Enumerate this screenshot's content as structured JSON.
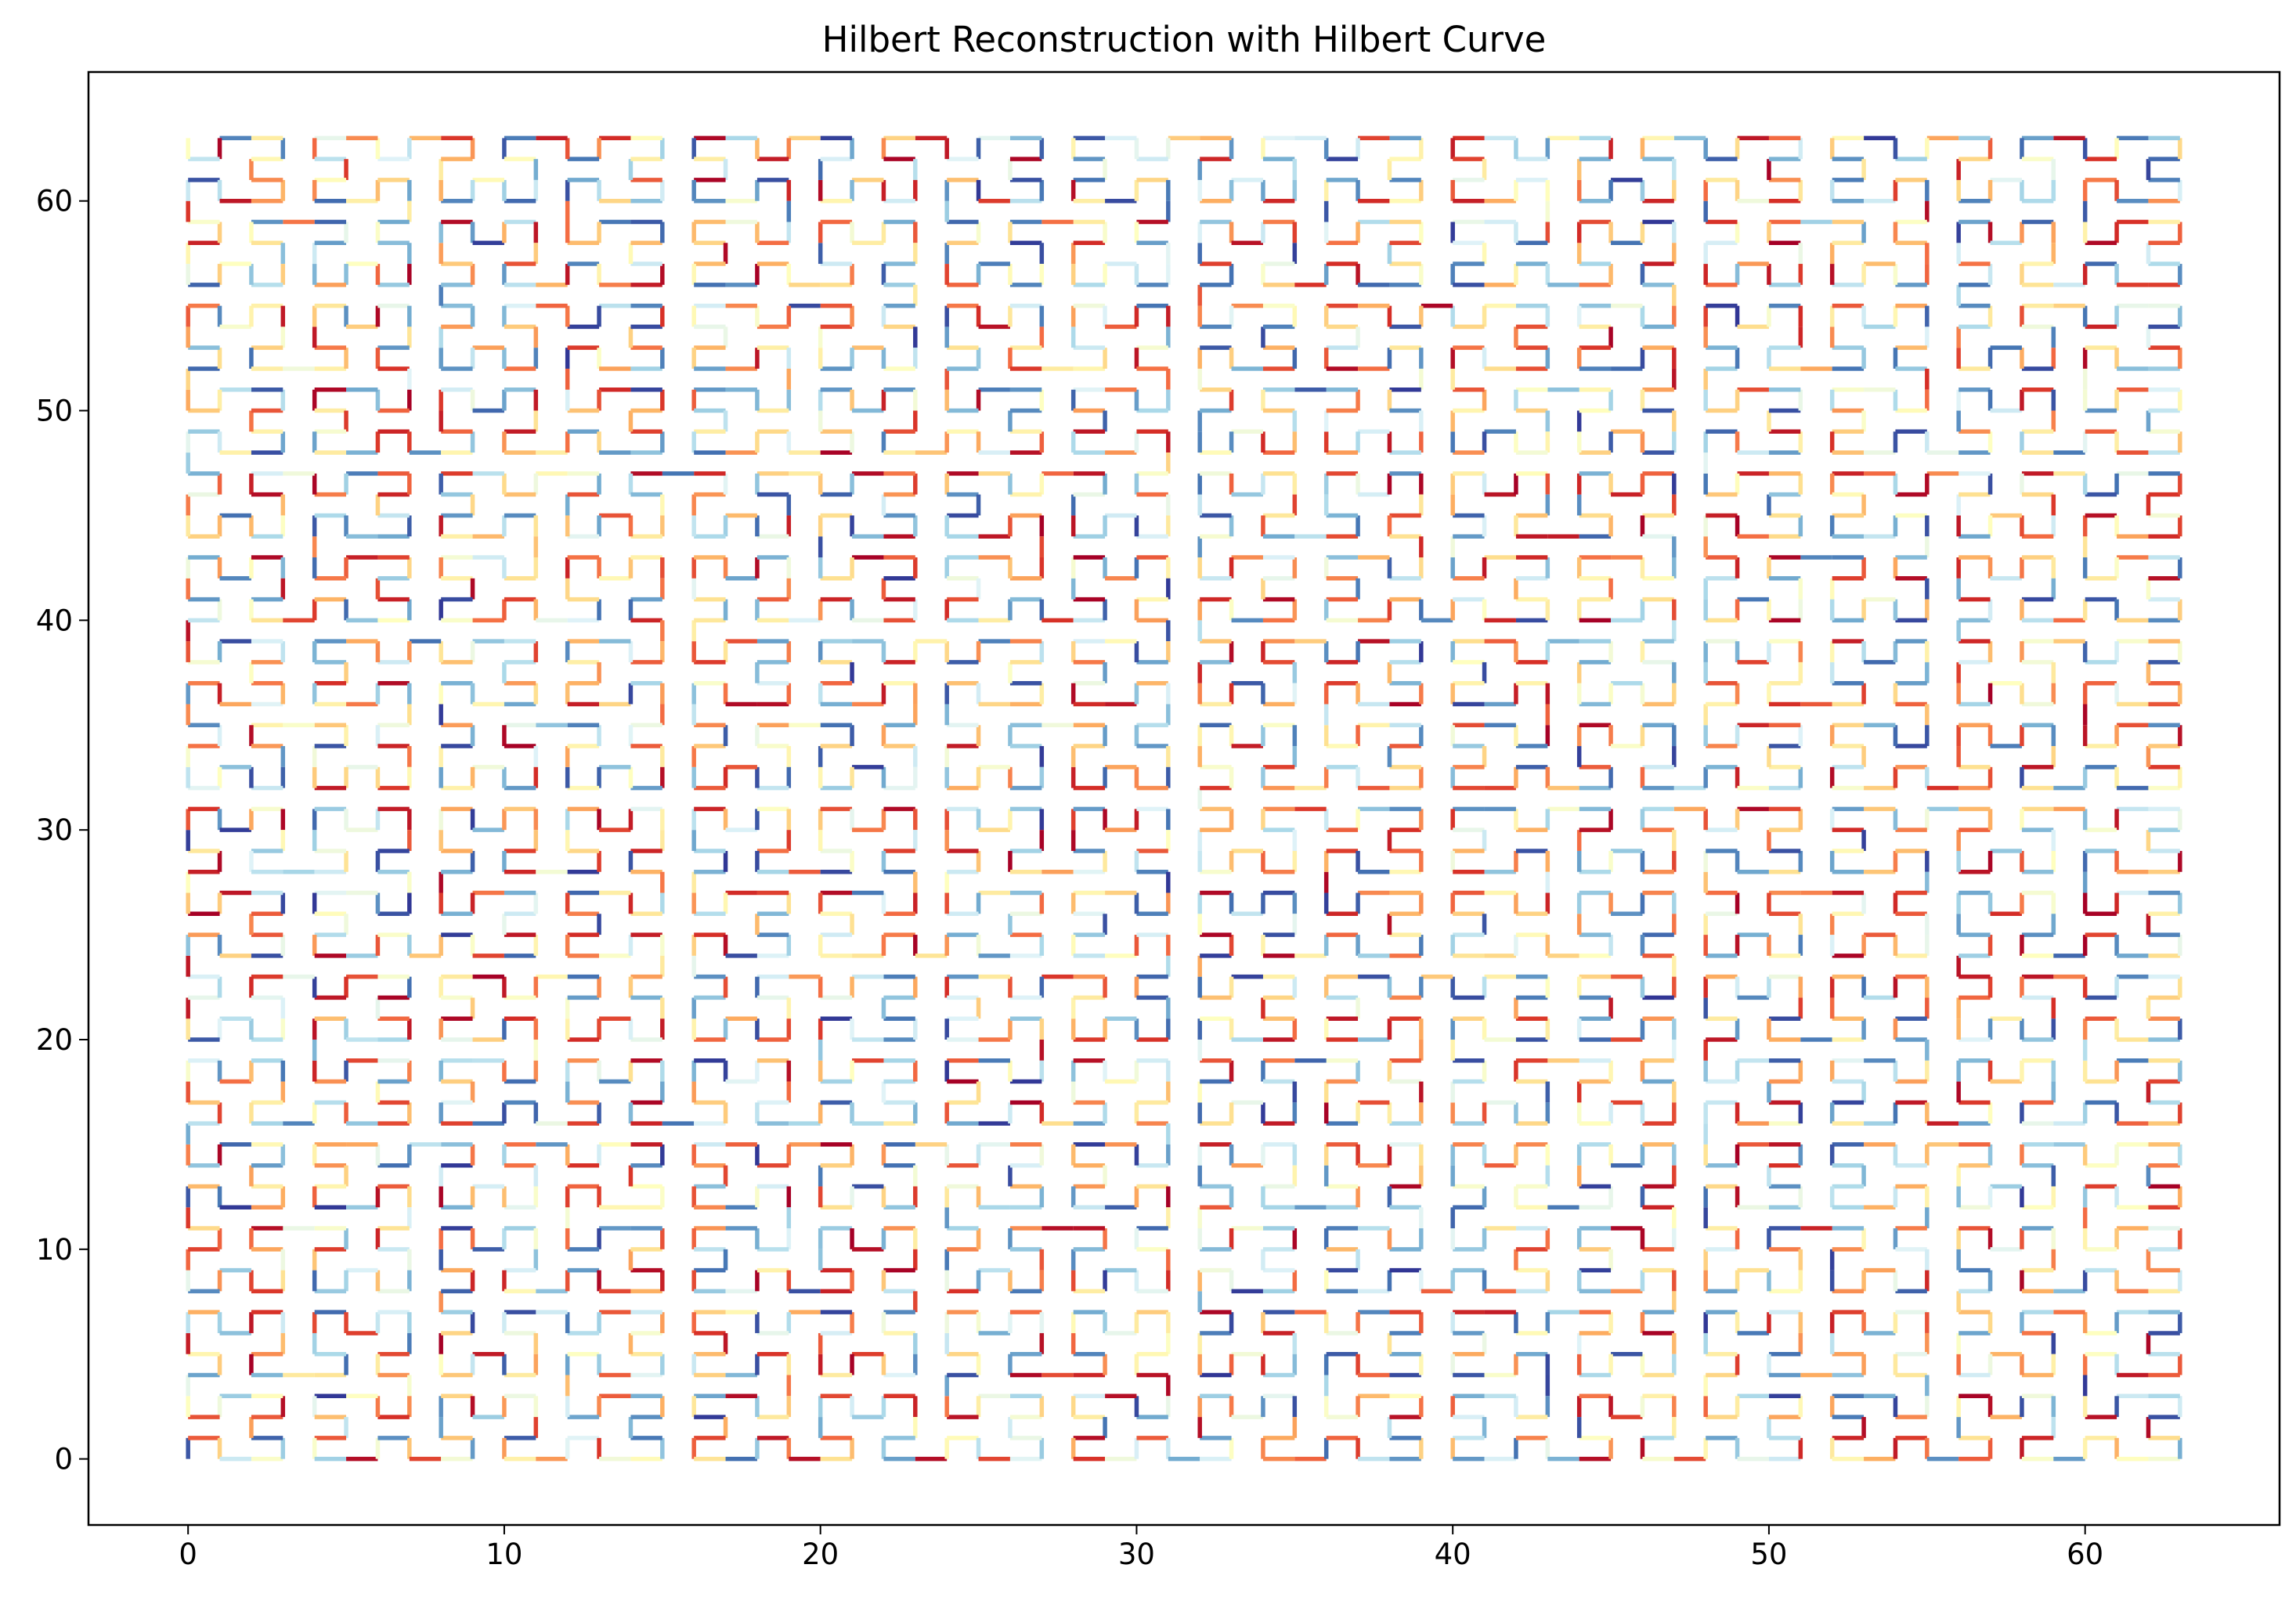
{
  "chart_data": {
    "type": "line",
    "title": "Hilbert Reconstruction with Hilbert Curve",
    "xlabel": "",
    "ylabel": "",
    "xlim": [
      -3.15,
      66.15
    ],
    "ylim": [
      -3.15,
      66.15
    ],
    "xticks": [
      0,
      10,
      20,
      30,
      40,
      50,
      60
    ],
    "yticks": [
      0,
      10,
      20,
      30,
      40,
      50,
      60
    ],
    "grid": false,
    "curve": {
      "kind": "hilbert",
      "order": 6,
      "n": 64,
      "points": 4096,
      "start": [
        0,
        0
      ],
      "end": [
        63,
        0
      ],
      "colormap": "RdYlBu",
      "color_stops": [
        "#a50026",
        "#d73027",
        "#f46d43",
        "#fdae61",
        "#fee090",
        "#ffffbf",
        "#e0f3f8",
        "#abd9e9",
        "#74add1",
        "#4575b4",
        "#313695"
      ]
    }
  }
}
